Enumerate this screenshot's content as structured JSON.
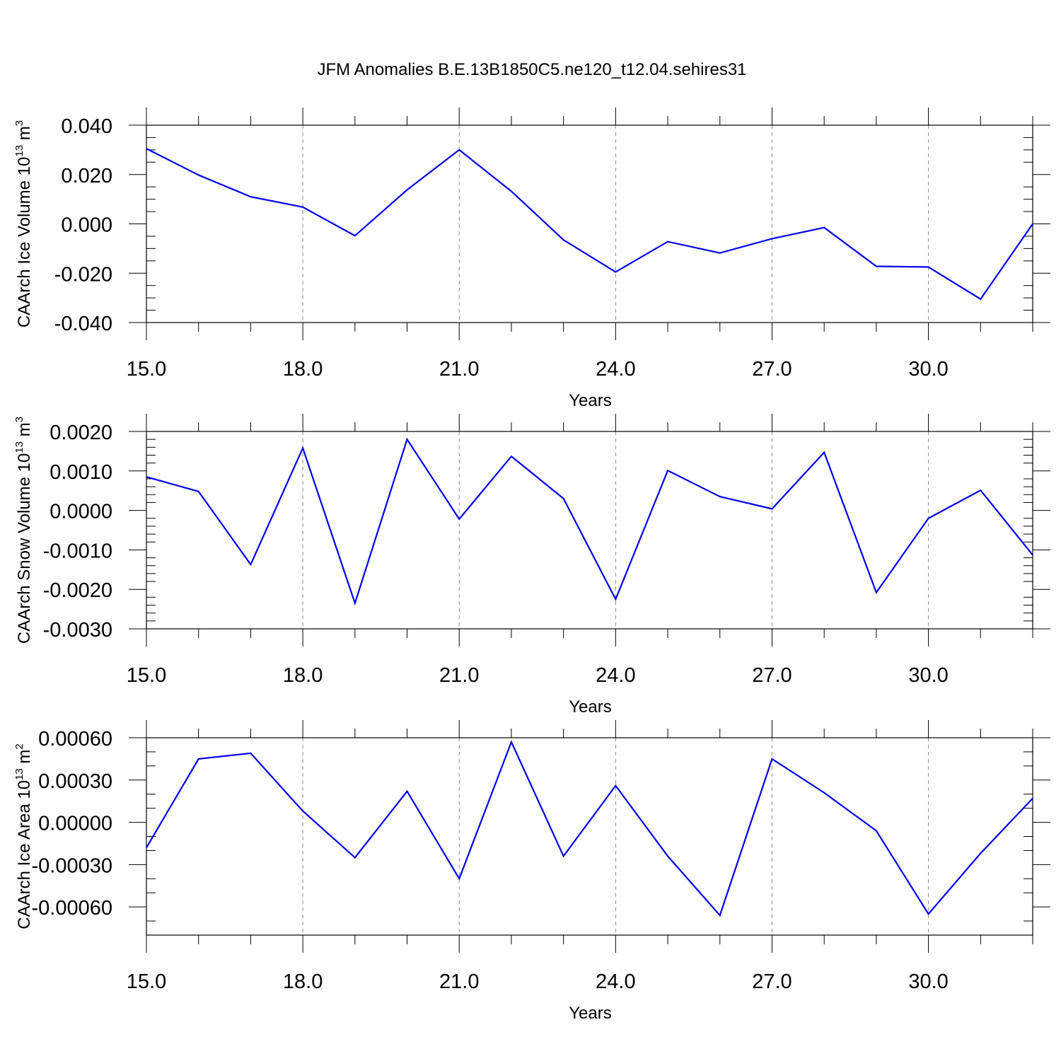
{
  "figure_title": "JFM Anomalies B.E.13B1850C5.ne120_t12.04.sehires31",
  "colors": {
    "line": "#0000ee",
    "axis": "#000000",
    "grid": "#888888"
  },
  "chart_data": [
    {
      "type": "line",
      "ylabel": "CAArch Ice Volume 10",
      "ylabel_sup": "13",
      "ylabel_unit": "m",
      "ylabel_unit_sup": "3",
      "xlabel": "Years",
      "xlim": [
        15,
        32
      ],
      "ylim": [
        -0.04,
        0.04
      ],
      "x_ticks": [
        15,
        18,
        21,
        24,
        27,
        30
      ],
      "x_tick_labels": [
        "15.0",
        "18.0",
        "21.0",
        "24.0",
        "27.0",
        "30.0"
      ],
      "y_ticks": [
        -0.04,
        -0.02,
        0.0,
        0.02,
        0.04
      ],
      "y_tick_labels": [
        "-0.040",
        "-0.020",
        "0.000",
        "0.020",
        "0.040"
      ],
      "x_minor_step": 1,
      "y_minor_step": 0.005,
      "grid": "vertical dashed at major x ticks",
      "series": [
        {
          "x": [
            15,
            16,
            17,
            18,
            19,
            20,
            21,
            22,
            23,
            24,
            25,
            26,
            27,
            28,
            29,
            30,
            31,
            32
          ],
          "values": [
            0.0305,
            0.0198,
            0.011,
            0.0068,
            -0.0048,
            0.0138,
            0.03,
            0.0132,
            -0.0065,
            -0.0195,
            -0.0072,
            -0.0118,
            -0.006,
            -0.0015,
            -0.0172,
            -0.0175,
            -0.0305,
            0.0
          ]
        }
      ]
    },
    {
      "type": "line",
      "ylabel": "CAArch Snow Volume 10",
      "ylabel_sup": "13",
      "ylabel_unit": "m",
      "ylabel_unit_sup": "3",
      "xlabel": "Years",
      "xlim": [
        15,
        32
      ],
      "ylim": [
        -0.003,
        0.002
      ],
      "x_ticks": [
        15,
        18,
        21,
        24,
        27,
        30
      ],
      "x_tick_labels": [
        "15.0",
        "18.0",
        "21.0",
        "24.0",
        "27.0",
        "30.0"
      ],
      "y_ticks": [
        -0.003,
        -0.002,
        -0.001,
        0.0,
        0.001,
        0.002
      ],
      "y_tick_labels": [
        "-0.0030",
        "-0.0020",
        "-0.0010",
        "0.0000",
        "0.0010",
        "0.0020"
      ],
      "x_minor_step": 1,
      "y_minor_step": 0.0002,
      "grid": "vertical dashed at major x ticks",
      "series": [
        {
          "x": [
            15,
            16,
            17,
            18,
            19,
            20,
            21,
            22,
            23,
            24,
            25,
            26,
            27,
            28,
            29,
            30,
            31,
            32
          ],
          "values": [
            0.00085,
            0.00048,
            -0.00137,
            0.00158,
            -0.00235,
            0.0018,
            -0.00022,
            0.00137,
            0.0003,
            -0.00225,
            0.00101,
            0.00035,
            4e-05,
            0.00147,
            -0.00208,
            -0.0002,
            0.00051,
            -0.00113
          ]
        }
      ]
    },
    {
      "type": "line",
      "ylabel": "CAArch Ice Area 10",
      "ylabel_sup": "13",
      "ylabel_unit": "m",
      "ylabel_unit_sup": "2",
      "xlabel": "Years",
      "xlim": [
        15,
        32
      ],
      "ylim": [
        -0.0008,
        0.0006
      ],
      "x_ticks": [
        15,
        18,
        21,
        24,
        27,
        30
      ],
      "x_tick_labels": [
        "15.0",
        "18.0",
        "21.0",
        "24.0",
        "27.0",
        "30.0"
      ],
      "y_ticks": [
        -0.0006,
        -0.0003,
        0.0,
        0.0003,
        0.0006
      ],
      "y_tick_labels": [
        "-0.00060",
        "-0.00030",
        "0.00000",
        "0.00030",
        "0.00060"
      ],
      "x_minor_step": 1,
      "y_minor_step": 0.0001,
      "grid": "vertical dashed at major x ticks",
      "series": [
        {
          "x": [
            15,
            16,
            17,
            18,
            19,
            20,
            21,
            22,
            23,
            24,
            25,
            26,
            27,
            28,
            29,
            30,
            31,
            32
          ],
          "values": [
            -0.00018,
            0.00045,
            0.00049,
            8e-05,
            -0.00025,
            0.00022,
            -0.0004,
            0.00057,
            -0.00024,
            0.00026,
            -0.00024,
            -0.00066,
            0.00045,
            0.00021,
            -6e-05,
            -0.00065,
            -0.00022,
            0.00017
          ]
        }
      ]
    }
  ]
}
